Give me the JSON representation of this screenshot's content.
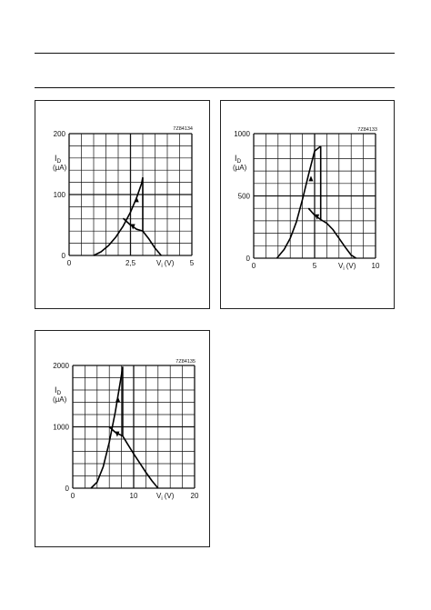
{
  "chart_data": [
    {
      "type": "line",
      "code": "7Z84134",
      "ylabel": "I",
      "ylabel_sub": "D",
      "yunit": "(μA)",
      "xlabel": "V",
      "xlabel_sub": "i",
      "xunit": "(V)",
      "xlim": [
        0,
        5
      ],
      "ylim": [
        0,
        200
      ],
      "xticks": [
        "0",
        "2,5",
        "5"
      ],
      "yticks": [
        "0",
        "100",
        "200"
      ],
      "x_grid_step": 0.5,
      "y_grid_step": 20,
      "grid": true,
      "series": [
        {
          "x": [
            1.0,
            1.3,
            1.6,
            1.9,
            2.2,
            2.5,
            2.75,
            2.95,
            3.0
          ],
          "y": [
            0,
            6,
            16,
            30,
            48,
            71,
            95,
            118,
            128
          ]
        },
        {
          "x": [
            3.0,
            3.0
          ],
          "y": [
            128,
            40
          ]
        },
        {
          "x": [
            2.2,
            2.5,
            2.75,
            3.0,
            3.25,
            3.5,
            3.75
          ],
          "y": [
            61,
            50,
            43,
            40,
            27,
            12,
            0
          ]
        }
      ],
      "arrows": [
        {
          "x": 2.75,
          "y": 92,
          "dir": "up"
        },
        {
          "x": 2.6,
          "y": 47,
          "dir": "down"
        }
      ]
    },
    {
      "type": "line",
      "code": "7Z84133",
      "ylabel": "I",
      "ylabel_sub": "D",
      "yunit": "(μA)",
      "xlabel": "V",
      "xlabel_sub": "i",
      "xunit": "(V)",
      "xlim": [
        0,
        10
      ],
      "ylim": [
        0,
        1000
      ],
      "xticks": [
        "0",
        "5",
        "10"
      ],
      "yticks": [
        "0",
        "500",
        "1000"
      ],
      "x_grid_step": 1,
      "y_grid_step": 100,
      "grid": true,
      "series": [
        {
          "x": [
            1.9,
            2.5,
            3.0,
            3.5,
            4.0,
            4.5,
            5.0,
            5.5
          ],
          "y": [
            0,
            70,
            160,
            290,
            470,
            670,
            860,
            900
          ]
        },
        {
          "x": [
            5.5,
            5.5
          ],
          "y": [
            900,
            310
          ]
        },
        {
          "x": [
            4.5,
            5.0,
            5.5,
            6.0,
            6.5,
            7.0,
            7.5,
            8.0,
            8.4
          ],
          "y": [
            400,
            345,
            310,
            280,
            230,
            160,
            90,
            25,
            0
          ]
        }
      ],
      "arrows": [
        {
          "x": 4.7,
          "y": 640,
          "dir": "up"
        },
        {
          "x": 5.2,
          "y": 330,
          "dir": "down"
        }
      ]
    },
    {
      "type": "line",
      "code": "7Z84135",
      "ylabel": "I",
      "ylabel_sub": "D",
      "yunit": "(μA)",
      "xlabel": "V",
      "xlabel_sub": "i",
      "xunit": "(V)",
      "xlim": [
        0,
        20
      ],
      "ylim": [
        0,
        2000
      ],
      "xticks": [
        "0",
        "10",
        "20"
      ],
      "yticks": [
        "0",
        "1000",
        "2000"
      ],
      "x_grid_step": 2,
      "y_grid_step": 200,
      "grid": true,
      "series": [
        {
          "x": [
            3.0,
            4.0,
            5.0,
            6.0,
            7.0,
            8.0,
            8.2
          ],
          "y": [
            0,
            100,
            350,
            750,
            1250,
            1850,
            1980
          ]
        },
        {
          "x": [
            8.2,
            8.2
          ],
          "y": [
            1980,
            850
          ]
        },
        {
          "x": [
            6.0,
            7.0,
            8.2,
            9.0,
            10.0,
            11.0,
            12.0,
            13.0,
            14.0
          ],
          "y": [
            1000,
            910,
            850,
            720,
            560,
            410,
            260,
            120,
            0
          ]
        }
      ],
      "arrows": [
        {
          "x": 7.4,
          "y": 1450,
          "dir": "up"
        },
        {
          "x": 7.3,
          "y": 880,
          "dir": "down"
        }
      ]
    }
  ]
}
